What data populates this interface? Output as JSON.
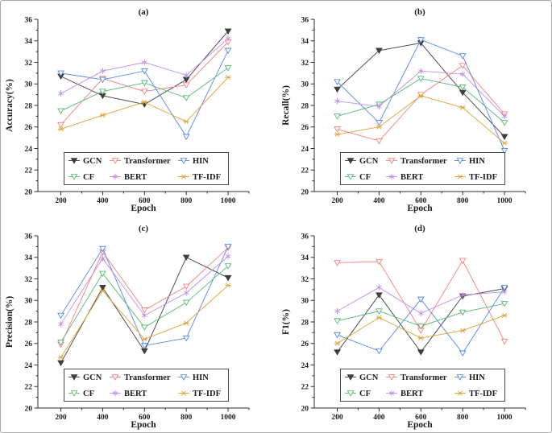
{
  "figure": {
    "background": "#ffffff",
    "border_color": "#a9a9a9"
  },
  "styles": {
    "series": [
      {
        "name": "GCN",
        "color": "#3f3f3f",
        "marker": "triangle-down-filled"
      },
      {
        "name": "Transformer",
        "color": "#f38080",
        "marker": "triangle-down-open"
      },
      {
        "name": "HIN",
        "color": "#5688e6",
        "marker": "triangle-down-open"
      },
      {
        "name": "CF",
        "color": "#57b876",
        "marker": "triangle-down-open"
      },
      {
        "name": "BERT",
        "color": "#c08fe3",
        "marker": "asterisk-6"
      },
      {
        "name": "TF-IDF",
        "color": "#d8a435",
        "marker": "asterisk-x"
      }
    ]
  },
  "legend": {
    "rows": [
      [
        "GCN",
        "Transformer",
        "HIN"
      ],
      [
        "CF",
        "BERT",
        "TF-IDF"
      ]
    ],
    "position": "bottom-center",
    "border_color": "#4a4a4a"
  },
  "chart_data": [
    {
      "type": "line",
      "title": "(a)",
      "xlabel": "Epoch",
      "ylabel": "Accuracy(%)",
      "x": [
        200,
        400,
        600,
        800,
        1000
      ],
      "x_ticks": [
        200,
        400,
        600,
        800,
        1000
      ],
      "y_ticks": [
        20,
        22,
        24,
        26,
        28,
        30,
        32,
        34,
        36
      ],
      "xlim": [
        90,
        1100
      ],
      "ylim": [
        20,
        36
      ],
      "grid": false,
      "series": [
        {
          "name": "GCN",
          "values": [
            30.7,
            28.9,
            28.1,
            30.4,
            34.9
          ]
        },
        {
          "name": "Transformer",
          "values": [
            26.2,
            30.5,
            29.3,
            29.9,
            33.9
          ]
        },
        {
          "name": "HIN",
          "values": [
            31.0,
            30.4,
            31.2,
            25.1,
            33.1
          ]
        },
        {
          "name": "CF",
          "values": [
            27.5,
            29.3,
            30.1,
            28.7,
            31.5
          ]
        },
        {
          "name": "BERT",
          "values": [
            29.1,
            31.2,
            32.0,
            30.8,
            34.2
          ]
        },
        {
          "name": "TF-IDF",
          "values": [
            25.8,
            27.1,
            28.3,
            26.5,
            30.6
          ]
        }
      ]
    },
    {
      "type": "line",
      "title": "(b)",
      "xlabel": "Epoch",
      "ylabel": "Recall(%)",
      "x": [
        200,
        400,
        600,
        800,
        1000
      ],
      "x_ticks": [
        200,
        400,
        600,
        800,
        1000
      ],
      "y_ticks": [
        20,
        22,
        24,
        26,
        28,
        30,
        32,
        34,
        36
      ],
      "xlim": [
        90,
        1100
      ],
      "ylim": [
        20,
        36
      ],
      "grid": false,
      "series": [
        {
          "name": "GCN",
          "values": [
            29.5,
            33.1,
            33.8,
            29.2,
            25.1
          ]
        },
        {
          "name": "Transformer",
          "values": [
            25.8,
            24.7,
            29.0,
            31.7,
            27.2
          ]
        },
        {
          "name": "HIN",
          "values": [
            30.2,
            26.4,
            34.1,
            32.6,
            23.8
          ]
        },
        {
          "name": "CF",
          "values": [
            27.0,
            28.1,
            30.5,
            29.7,
            26.4
          ]
        },
        {
          "name": "BERT",
          "values": [
            28.4,
            27.9,
            31.2,
            30.9,
            27.0
          ]
        },
        {
          "name": "TF-IDF",
          "values": [
            25.3,
            26.0,
            28.9,
            27.8,
            24.5
          ]
        }
      ]
    },
    {
      "type": "line",
      "title": "(c)",
      "xlabel": "Epoch",
      "ylabel": "Precision(%)",
      "x": [
        200,
        400,
        600,
        800,
        1000
      ],
      "x_ticks": [
        200,
        400,
        600,
        800,
        1000
      ],
      "y_ticks": [
        20,
        22,
        24,
        26,
        28,
        30,
        32,
        34,
        36
      ],
      "xlim": [
        90,
        1100
      ],
      "ylim": [
        20,
        36
      ],
      "grid": false,
      "series": [
        {
          "name": "GCN",
          "values": [
            24.2,
            31.2,
            25.3,
            34.0,
            32.1
          ]
        },
        {
          "name": "Transformer",
          "values": [
            25.9,
            34.5,
            29.1,
            31.3,
            34.9
          ]
        },
        {
          "name": "HIN",
          "values": [
            28.6,
            34.8,
            25.8,
            26.5,
            35.0
          ]
        },
        {
          "name": "CF",
          "values": [
            26.1,
            32.5,
            27.5,
            29.8,
            33.2
          ]
        },
        {
          "name": "BERT",
          "values": [
            27.8,
            33.9,
            28.6,
            30.7,
            34.1
          ]
        },
        {
          "name": "TF-IDF",
          "values": [
            24.7,
            30.9,
            26.4,
            27.9,
            31.4
          ]
        }
      ]
    },
    {
      "type": "line",
      "title": "(d)",
      "xlabel": "Epoch",
      "ylabel": "F1(%)",
      "x": [
        200,
        400,
        600,
        800,
        1000
      ],
      "x_ticks": [
        200,
        400,
        600,
        800,
        1000
      ],
      "y_ticks": [
        20,
        22,
        24,
        26,
        28,
        30,
        32,
        34,
        36
      ],
      "xlim": [
        90,
        1100
      ],
      "ylim": [
        20,
        36
      ],
      "grid": false,
      "series": [
        {
          "name": "GCN",
          "values": [
            25.2,
            30.5,
            25.2,
            30.4,
            31.1
          ]
        },
        {
          "name": "Transformer",
          "values": [
            33.5,
            33.6,
            27.2,
            33.7,
            26.2
          ]
        },
        {
          "name": "HIN",
          "values": [
            26.8,
            25.3,
            30.1,
            25.1,
            31.2
          ]
        },
        {
          "name": "CF",
          "values": [
            28.1,
            29.0,
            27.6,
            28.9,
            29.7
          ]
        },
        {
          "name": "BERT",
          "values": [
            29.0,
            31.2,
            28.8,
            30.5,
            30.8
          ]
        },
        {
          "name": "TF-IDF",
          "values": [
            26.0,
            28.4,
            26.5,
            27.2,
            28.6
          ]
        }
      ]
    }
  ]
}
